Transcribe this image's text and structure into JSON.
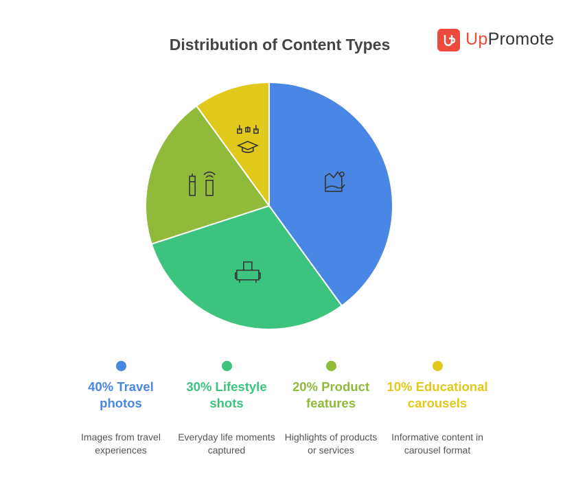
{
  "brand": {
    "highlight": "Up",
    "rest": "Promote"
  },
  "chart_data": {
    "type": "pie",
    "title": "Distribution of Content Types",
    "categories": [
      "Travel photos",
      "Lifestyle shots",
      "Product features",
      "Educational carousels"
    ],
    "values": [
      40,
      30,
      20,
      10
    ],
    "value_labels": [
      "40%",
      "30%",
      "20%",
      "10%"
    ],
    "colors": [
      "#4a86e4",
      "#3cc47f",
      "#8fba3a",
      "#e0c91a"
    ],
    "descriptions": [
      "Images from travel experiences",
      "Everyday life moments captured",
      "Highlights of products or services",
      "Informative content in carousel format"
    ]
  }
}
